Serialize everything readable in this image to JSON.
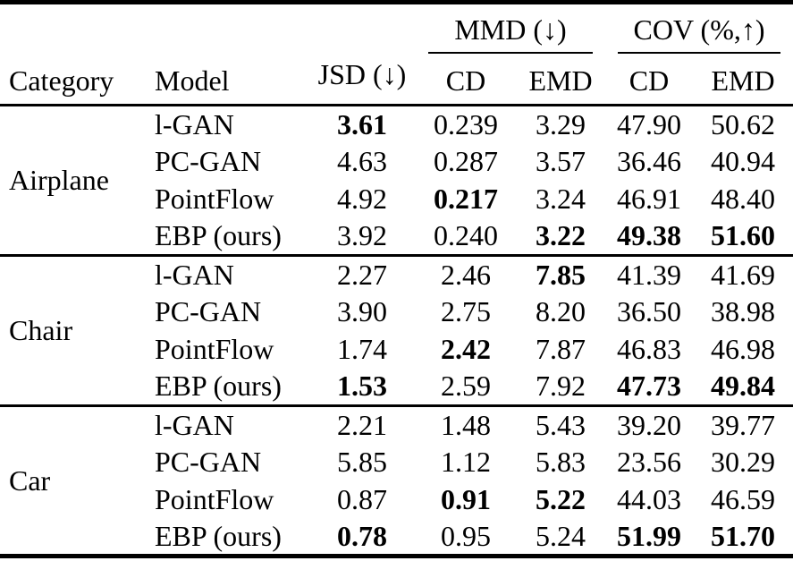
{
  "table": {
    "header": {
      "category": "Category",
      "model": "Model",
      "jsd": "JSD (↓)",
      "mmd_group": "MMD (↓)",
      "cov_group": "COV (%,↑)",
      "mmd_cd": "CD",
      "mmd_emd": "EMD",
      "cov_cd": "CD",
      "cov_emd": "EMD"
    },
    "value_columns": [
      "jsd",
      "mmd_cd",
      "mmd_emd",
      "cov_cd",
      "cov_emd"
    ],
    "groups": [
      {
        "category": "Airplane",
        "rows": [
          {
            "model": "l-GAN",
            "values": [
              "3.61",
              "0.239",
              "3.29",
              "47.90",
              "50.62"
            ],
            "bold": [
              true,
              false,
              false,
              false,
              false
            ]
          },
          {
            "model": "PC-GAN",
            "values": [
              "4.63",
              "0.287",
              "3.57",
              "36.46",
              "40.94"
            ],
            "bold": [
              false,
              false,
              false,
              false,
              false
            ]
          },
          {
            "model": "PointFlow",
            "values": [
              "4.92",
              "0.217",
              "3.24",
              "46.91",
              "48.40"
            ],
            "bold": [
              false,
              true,
              false,
              false,
              false
            ]
          },
          {
            "model": "EBP (ours)",
            "values": [
              "3.92",
              "0.240",
              "3.22",
              "49.38",
              "51.60"
            ],
            "bold": [
              false,
              false,
              true,
              true,
              true
            ]
          }
        ]
      },
      {
        "category": "Chair",
        "rows": [
          {
            "model": "l-GAN",
            "values": [
              "2.27",
              "2.46",
              "7.85",
              "41.39",
              "41.69"
            ],
            "bold": [
              false,
              false,
              true,
              false,
              false
            ]
          },
          {
            "model": "PC-GAN",
            "values": [
              "3.90",
              "2.75",
              "8.20",
              "36.50",
              "38.98"
            ],
            "bold": [
              false,
              false,
              false,
              false,
              false
            ]
          },
          {
            "model": "PointFlow",
            "values": [
              "1.74",
              "2.42",
              "7.87",
              "46.83",
              "46.98"
            ],
            "bold": [
              false,
              true,
              false,
              false,
              false
            ]
          },
          {
            "model": "EBP (ours)",
            "values": [
              "1.53",
              "2.59",
              "7.92",
              "47.73",
              "49.84"
            ],
            "bold": [
              true,
              false,
              false,
              true,
              true
            ]
          }
        ]
      },
      {
        "category": "Car",
        "rows": [
          {
            "model": "l-GAN",
            "values": [
              "2.21",
              "1.48",
              "5.43",
              "39.20",
              "39.77"
            ],
            "bold": [
              false,
              false,
              false,
              false,
              false
            ]
          },
          {
            "model": "PC-GAN",
            "values": [
              "5.85",
              "1.12",
              "5.83",
              "23.56",
              "30.29"
            ],
            "bold": [
              false,
              false,
              false,
              false,
              false
            ]
          },
          {
            "model": "PointFlow",
            "values": [
              "0.87",
              "0.91",
              "5.22",
              "44.03",
              "46.59"
            ],
            "bold": [
              false,
              true,
              true,
              false,
              false
            ]
          },
          {
            "model": "EBP (ours)",
            "values": [
              "0.78",
              "0.95",
              "5.24",
              "51.99",
              "51.70"
            ],
            "bold": [
              true,
              false,
              false,
              true,
              true
            ]
          }
        ]
      }
    ]
  }
}
